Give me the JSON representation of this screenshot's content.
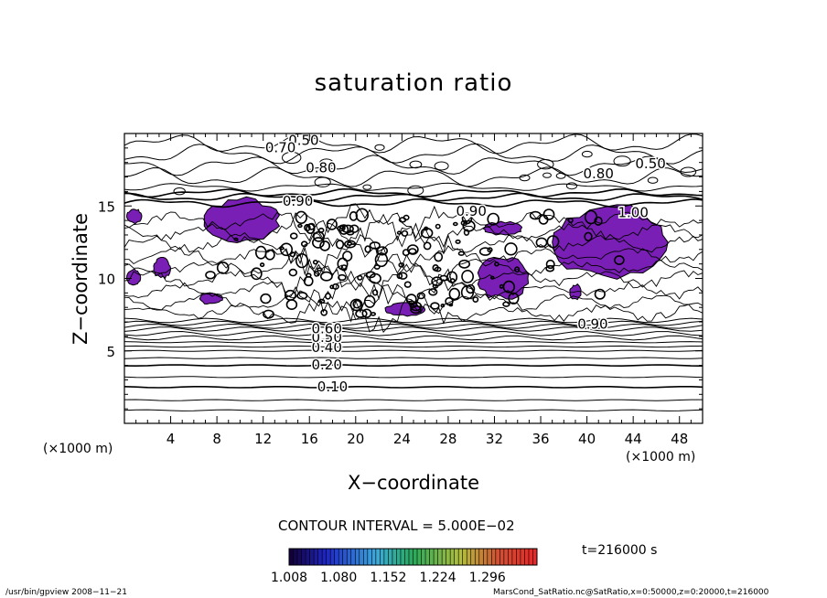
{
  "chart_data": {
    "type": "contour",
    "title": "saturation ratio",
    "xlabel": "X−coordinate",
    "ylabel": "Z−coordinate",
    "x_unit_label_left": "(×1000 m)",
    "x_unit_label_right": "(×1000 m)",
    "xlim": [
      0,
      50
    ],
    "ylim": [
      0,
      20
    ],
    "x_ticks": [
      4,
      8,
      12,
      16,
      20,
      24,
      28,
      32,
      36,
      40,
      44,
      48
    ],
    "y_ticks": [
      5,
      10,
      15
    ],
    "contour_interval_text": "CONTOUR INTERVAL = 5.000E−02",
    "contour_labels": [
      {
        "text": "0.10",
        "x": 18,
        "z": 2.5
      },
      {
        "text": "0.20",
        "x": 17.5,
        "z": 4.0
      },
      {
        "text": "0.40",
        "x": 17.5,
        "z": 5.2
      },
      {
        "text": "0.50",
        "x": 17.5,
        "z": 5.9
      },
      {
        "text": "0.60",
        "x": 17.5,
        "z": 6.5
      },
      {
        "text": "0.50",
        "x": 15.5,
        "z": 19.5
      },
      {
        "text": "0.70",
        "x": 13.5,
        "z": 19.0
      },
      {
        "text": "0.80",
        "x": 17,
        "z": 17.6
      },
      {
        "text": "0.90",
        "x": 15,
        "z": 15.3
      },
      {
        "text": "0.90",
        "x": 30,
        "z": 14.6
      },
      {
        "text": "0.50",
        "x": 45.5,
        "z": 17.9
      },
      {
        "text": "0.80",
        "x": 41,
        "z": 17.2
      },
      {
        "text": "1.00",
        "x": 44,
        "z": 14.5
      },
      {
        "text": "0.90",
        "x": 40.5,
        "z": 6.8
      }
    ],
    "shaded_regions_above_1": [
      {
        "x": [
          6.8,
          13.5
        ],
        "z": [
          12.5,
          15.5
        ]
      },
      {
        "x": [
          0.2,
          1.5
        ],
        "z": [
          13.8,
          14.8
        ]
      },
      {
        "x": [
          0.2,
          1.4
        ],
        "z": [
          9.5,
          10.6
        ]
      },
      {
        "x": [
          2.5,
          4.0
        ],
        "z": [
          10.0,
          11.4
        ]
      },
      {
        "x": [
          31.0,
          34.5
        ],
        "z": [
          13.0,
          13.9
        ]
      },
      {
        "x": [
          30.5,
          35.0
        ],
        "z": [
          8.5,
          11.5
        ]
      },
      {
        "x": [
          37.0,
          47.0
        ],
        "z": [
          10.0,
          15.0
        ]
      },
      {
        "x": [
          22.5,
          26.0
        ],
        "z": [
          7.4,
          8.3
        ]
      },
      {
        "x": [
          6.5,
          8.5
        ],
        "z": [
          8.2,
          9.0
        ]
      },
      {
        "x": [
          38.5,
          39.5
        ],
        "z": [
          8.5,
          9.6
        ]
      }
    ],
    "colorbar": {
      "ticks": [
        "1.008",
        "1.080",
        "1.152",
        "1.224",
        "1.296"
      ],
      "range": [
        1.008,
        1.368
      ]
    },
    "time_text": "t=216000 s",
    "footer_left": "/usr/bin/gpview   2008−11−21",
    "footer_right": "MarsCond_SatRatio.nc@SatRatio,x=0:50000,z=0:20000,t=216000"
  },
  "colors": {
    "shade": "#7a1fb5",
    "line": "#000000"
  }
}
